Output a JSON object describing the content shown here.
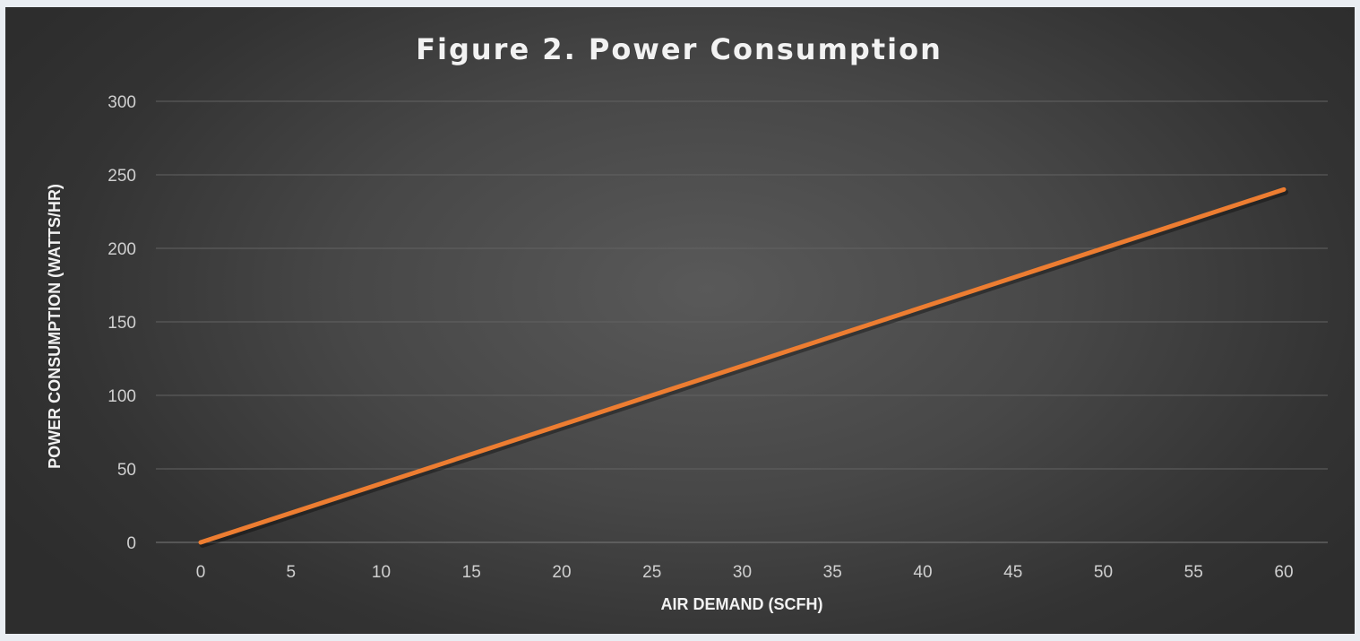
{
  "chart_data": {
    "type": "line",
    "title": "Figure 2. Power Consumption",
    "xlabel": "AIR DEMAND (SCFH)",
    "ylabel": "POWER CONSUMPTION (WATTS/HR)",
    "xlim": [
      0,
      60
    ],
    "ylim": [
      0,
      300
    ],
    "x_ticks": [
      0,
      5,
      10,
      15,
      20,
      25,
      30,
      35,
      40,
      45,
      50,
      55,
      60
    ],
    "y_ticks": [
      0,
      50,
      100,
      150,
      200,
      250,
      300
    ],
    "grid": true,
    "series": [
      {
        "x": [
          0,
          60
        ],
        "y": [
          0,
          240
        ],
        "color": "#ed7d31"
      }
    ]
  }
}
